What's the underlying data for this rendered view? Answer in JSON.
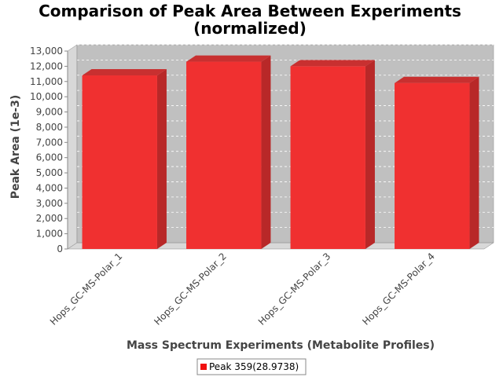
{
  "chart_data": {
    "type": "bar",
    "title_line1": "Comparison of Peak Area Between Experiments",
    "title_line2": "(normalized)",
    "xlabel": "Mass Spectrum Experiments (Metabolite Profiles)",
    "ylabel": "Peak Area (1e-3)",
    "categories": [
      "Hops_GC-MS-Polar_1",
      "Hops_GC-MS-Polar_2",
      "Hops_GC-MS-Polar_3",
      "Hops_GC-MS-Polar_4"
    ],
    "series": [
      {
        "name": "Peak 359(28.9738)",
        "values": [
          11400,
          12300,
          12000,
          10900
        ],
        "color": "#f03030"
      }
    ],
    "ylim": [
      0,
      13000
    ],
    "y_ticks": [
      "0",
      "1,000",
      "2,000",
      "3,000",
      "4,000",
      "5,000",
      "6,000",
      "7,000",
      "8,000",
      "9,000",
      "10,000",
      "11,000",
      "12,000",
      "13,000"
    ],
    "grid": true,
    "legend_position": "bottom-center",
    "colors": {
      "plot_background": "#c0c0c0",
      "bar_face": "#f03030",
      "bar_side": "#b82828",
      "bar_top": "#c83030"
    }
  }
}
